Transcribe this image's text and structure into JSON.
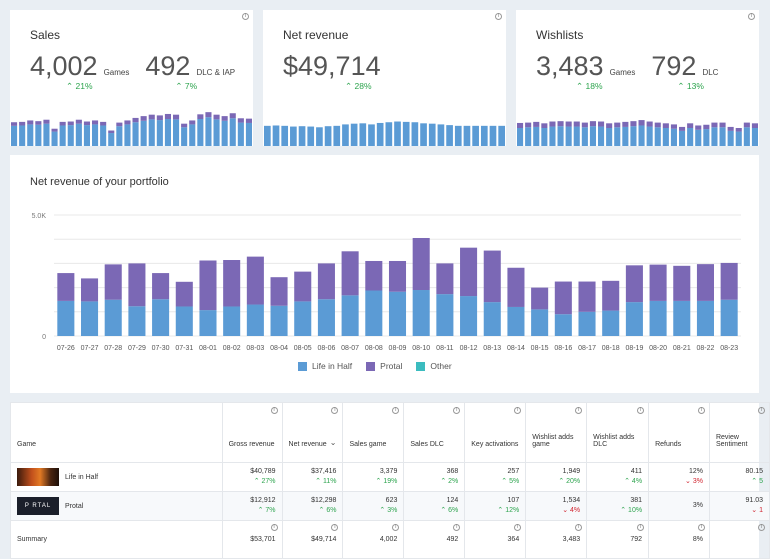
{
  "kpis": [
    {
      "title": "Sales",
      "groups": [
        {
          "value": "4,002",
          "unit": "Games",
          "delta": "21%"
        },
        {
          "value": "492",
          "unit": "DLC & IAP",
          "delta": "7%"
        }
      ],
      "bars_bottom": [
        0.56,
        0.57,
        0.6,
        0.59,
        0.62,
        0.4,
        0.57,
        0.58,
        0.62,
        0.58,
        0.6,
        0.57,
        0.36,
        0.55,
        0.6,
        0.66,
        0.7,
        0.74,
        0.72,
        0.75,
        0.74,
        0.52,
        0.6,
        0.75,
        0.8,
        0.74,
        0.7,
        0.77,
        0.65,
        0.64
      ],
      "bars_top": [
        0.1,
        0.1,
        0.11,
        0.1,
        0.11,
        0.08,
        0.1,
        0.1,
        0.11,
        0.1,
        0.11,
        0.1,
        0.07,
        0.1,
        0.11,
        0.12,
        0.13,
        0.13,
        0.13,
        0.14,
        0.13,
        0.1,
        0.11,
        0.13,
        0.14,
        0.13,
        0.13,
        0.14,
        0.12,
        0.12
      ]
    },
    {
      "title": "Net revenue",
      "groups": [
        {
          "value": "$49,714",
          "unit": "",
          "delta": "28%"
        }
      ],
      "bars_bottom": [
        0.56,
        0.57,
        0.56,
        0.54,
        0.55,
        0.54,
        0.52,
        0.55,
        0.56,
        0.6,
        0.62,
        0.63,
        0.6,
        0.64,
        0.66,
        0.68,
        0.67,
        0.66,
        0.63,
        0.62,
        0.6,
        0.58,
        0.56,
        0.56,
        0.56,
        0.56,
        0.56,
        0.56
      ],
      "bars_top": []
    },
    {
      "title": "Wishlists",
      "groups": [
        {
          "value": "3,483",
          "unit": "Games",
          "delta": "18%"
        },
        {
          "value": "792",
          "unit": "DLC",
          "delta": "13%"
        }
      ],
      "bars_bottom": [
        0.5,
        0.52,
        0.53,
        0.5,
        0.54,
        0.55,
        0.54,
        0.54,
        0.52,
        0.55,
        0.54,
        0.5,
        0.52,
        0.53,
        0.55,
        0.57,
        0.54,
        0.52,
        0.5,
        0.48,
        0.42,
        0.5,
        0.45,
        0.47,
        0.52,
        0.52,
        0.42,
        0.4,
        0.52,
        0.5
      ],
      "bars_top": [
        0.14,
        0.13,
        0.14,
        0.13,
        0.14,
        0.14,
        0.14,
        0.14,
        0.13,
        0.14,
        0.14,
        0.13,
        0.13,
        0.14,
        0.14,
        0.15,
        0.14,
        0.13,
        0.13,
        0.12,
        0.11,
        0.13,
        0.12,
        0.12,
        0.13,
        0.13,
        0.11,
        0.1,
        0.13,
        0.13
      ]
    }
  ],
  "chart": {
    "title": "Net revenue of your portfolio",
    "colors": {
      "life_in_half": "#5b9bd5",
      "protal": "#7b68b5",
      "other": "#3bbcbf",
      "grid": "#e8e8e8"
    },
    "legend": [
      {
        "label": "Life in Half",
        "color": "#5b9bd5"
      },
      {
        "label": "Protal",
        "color": "#7b68b5"
      },
      {
        "label": "Other",
        "color": "#3bbcbf"
      }
    ]
  },
  "chart_data": {
    "type": "bar",
    "stacked": true,
    "title": "Net revenue of your portfolio",
    "categories": [
      "07-26",
      "07-27",
      "07-28",
      "07-29",
      "07-30",
      "07-31",
      "08-01",
      "08-02",
      "08-03",
      "08-04",
      "08-05",
      "08-06",
      "08-07",
      "08-08",
      "08-09",
      "08-10",
      "08-11",
      "08-12",
      "08-13",
      "08-14",
      "08-15",
      "08-16",
      "08-17",
      "08-18",
      "08-19",
      "08-20",
      "08-21",
      "08-22",
      "08-23"
    ],
    "series": [
      {
        "name": "Life in Half",
        "values": [
          1450,
          1430,
          1500,
          1230,
          1520,
          1220,
          1070,
          1220,
          1300,
          1250,
          1430,
          1520,
          1680,
          1880,
          1830,
          1900,
          1730,
          1650,
          1400,
          1200,
          1100,
          900,
          1000,
          1050,
          1400,
          1450,
          1450,
          1450,
          1500
        ]
      },
      {
        "name": "Protal",
        "values": [
          1150,
          950,
          1460,
          1770,
          1080,
          1020,
          2050,
          1920,
          1980,
          1180,
          1230,
          1480,
          1820,
          1220,
          1270,
          2150,
          1270,
          2000,
          2130,
          1620,
          900,
          1350,
          1250,
          1230,
          1520,
          1500,
          1450,
          1520,
          1520
        ]
      },
      {
        "name": "Other",
        "values": [
          0,
          0,
          0,
          0,
          0,
          0,
          0,
          0,
          0,
          0,
          0,
          0,
          0,
          0,
          0,
          0,
          0,
          0,
          0,
          0,
          0,
          0,
          0,
          0,
          0,
          0,
          0,
          0,
          0
        ]
      }
    ],
    "ylim": [
      0,
      5000
    ],
    "yticks": [
      "0",
      "5.0K"
    ],
    "grid": true,
    "legend_position": "bottom"
  },
  "table": {
    "headers": [
      "Game",
      "Gross revenue",
      "Net revenue",
      "Sales game",
      "Sales DLC",
      "Key activations",
      "Wishlist adds game",
      "Wishlist adds DLC",
      "Refunds",
      "Review Sentiment"
    ],
    "rows": [
      {
        "name": "Life in Half",
        "thumb": "life-in-half",
        "cells": [
          {
            "v": "$40,789",
            "d": "27%",
            "dir": "up"
          },
          {
            "v": "$37,416",
            "d": "11%",
            "dir": "up"
          },
          {
            "v": "3,379",
            "d": "19%",
            "dir": "up"
          },
          {
            "v": "368",
            "d": "2%",
            "dir": "up"
          },
          {
            "v": "257",
            "d": "5%",
            "dir": "up"
          },
          {
            "v": "1,949",
            "d": "20%",
            "dir": "up"
          },
          {
            "v": "411",
            "d": "4%",
            "dir": "up"
          },
          {
            "v": "12%",
            "d": "3%",
            "dir": "down"
          },
          {
            "v": "80.15",
            "d": "5",
            "dir": "up"
          }
        ]
      },
      {
        "name": "Protal",
        "thumb": "portal",
        "thumb_text": "P RTAL",
        "cells": [
          {
            "v": "$12,912",
            "d": "7%",
            "dir": "up"
          },
          {
            "v": "$12,298",
            "d": "6%",
            "dir": "up"
          },
          {
            "v": "623",
            "d": "3%",
            "dir": "up"
          },
          {
            "v": "124",
            "d": "6%",
            "dir": "up"
          },
          {
            "v": "107",
            "d": "12%",
            "dir": "up"
          },
          {
            "v": "1,534",
            "d": "4%",
            "dir": "down"
          },
          {
            "v": "381",
            "d": "10%",
            "dir": "up"
          },
          {
            "v": "3%",
            "d": "",
            "dir": ""
          },
          {
            "v": "91.03",
            "d": "1",
            "dir": "down"
          }
        ]
      }
    ],
    "summary": {
      "label": "Summary",
      "cells": [
        "$53,701",
        "$49,714",
        "4,002",
        "492",
        "364",
        "3,483",
        "792",
        "8%",
        ""
      ]
    }
  }
}
